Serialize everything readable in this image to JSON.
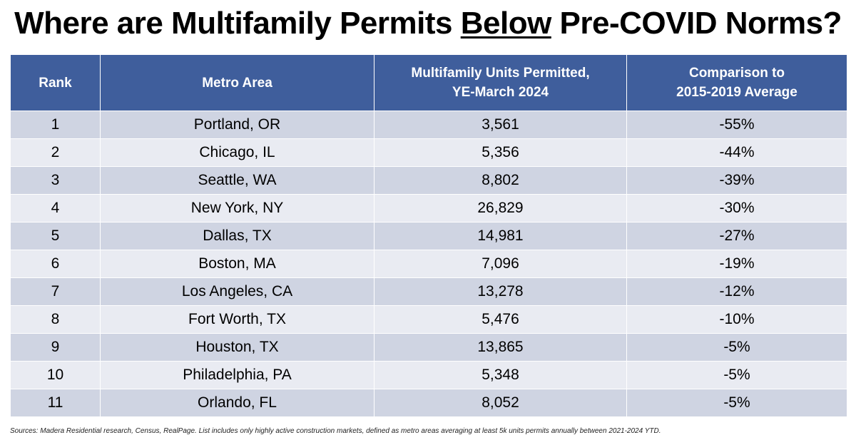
{
  "title": {
    "before": "Where are Multifamily Permits ",
    "emphasis": "Below",
    "after": " Pre-COVID Norms?"
  },
  "table": {
    "headers": [
      {
        "line1": "Rank",
        "line2": ""
      },
      {
        "line1": "Metro Area",
        "line2": ""
      },
      {
        "line1": "Multifamily Units Permitted,",
        "line2": "YE-March 2024"
      },
      {
        "line1": "Comparison to",
        "line2": "2015-2019 Average"
      }
    ]
  },
  "chart_data": {
    "type": "table",
    "columns": [
      "Rank",
      "Metro Area",
      "Multifamily Units Permitted, YE-March 2024",
      "Comparison to 2015-2019 Average"
    ],
    "rows": [
      [
        "1",
        "Portland, OR",
        "3,561",
        "-55%"
      ],
      [
        "2",
        "Chicago, IL",
        "5,356",
        "-44%"
      ],
      [
        "3",
        "Seattle, WA",
        "8,802",
        "-39%"
      ],
      [
        "4",
        "New York, NY",
        "26,829",
        "-30%"
      ],
      [
        "5",
        "Dallas, TX",
        "14,981",
        "-27%"
      ],
      [
        "6",
        "Boston, MA",
        "7,096",
        "-19%"
      ],
      [
        "7",
        "Los Angeles, CA",
        "13,278",
        "-12%"
      ],
      [
        "8",
        "Fort Worth, TX",
        "5,476",
        "-10%"
      ],
      [
        "9",
        "Houston, TX",
        "13,865",
        "-5%"
      ],
      [
        "10",
        "Philadelphia, PA",
        "5,348",
        "-5%"
      ],
      [
        "11",
        "Orlando, FL",
        "8,052",
        "-5%"
      ]
    ]
  },
  "footnote": "Sources: Madera Residential research, Census, RealPage. List includes only highly active construction markets, defined as metro areas averaging at least 5k units permits annually between 2021-2024 YTD.",
  "colors": {
    "header_bg": "#3f5e9c",
    "row_dark": "#cfd4e2",
    "row_light": "#e9ebf2"
  }
}
